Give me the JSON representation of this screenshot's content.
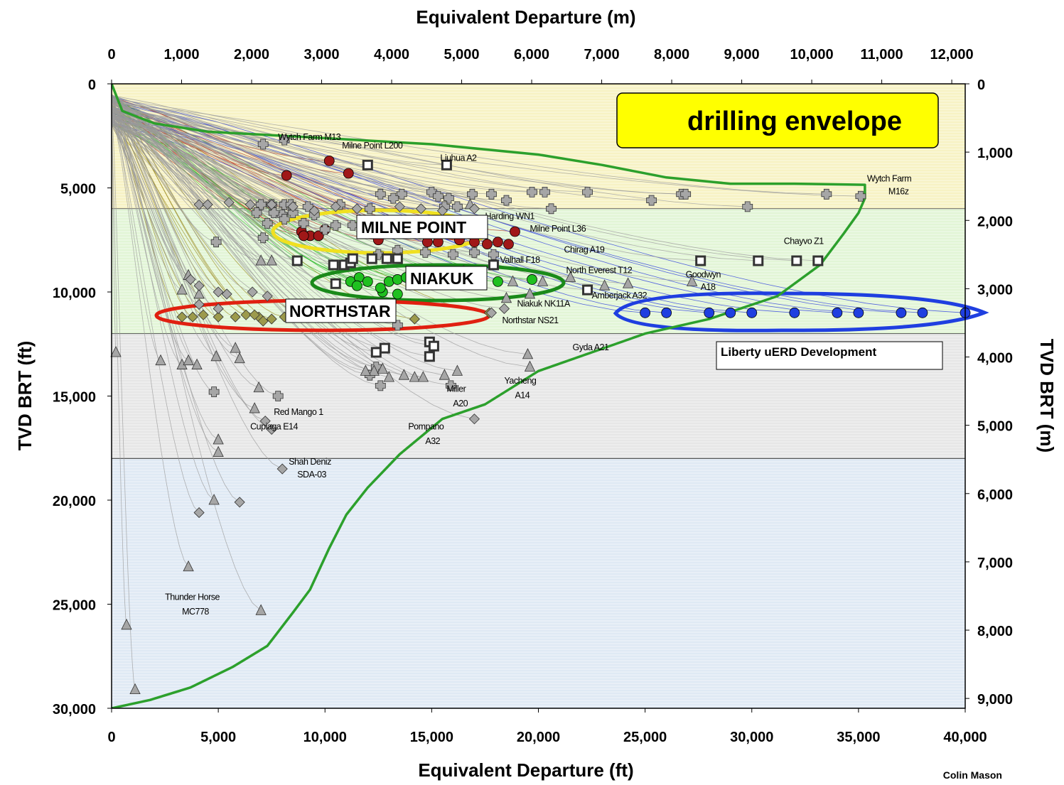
{
  "chart_data": {
    "type": "scatter",
    "title": "drilling envelope",
    "xlabel_bottom": "Equivalent Departure (ft)",
    "xlabel_top": "Equivalent Departure (m)",
    "ylabel_left": "TVD BRT (ft)",
    "ylabel_right": "TVD BRT (m)",
    "xlim_ft": [
      0,
      40000
    ],
    "ylim_ft": [
      0,
      30000
    ],
    "x_ticks_ft": [
      "0",
      "5,000",
      "10,000",
      "15,000",
      "20,000",
      "25,000",
      "30,000",
      "35,000",
      "40,000"
    ],
    "y_ticks_ft": [
      "0",
      "5,000",
      "10,000",
      "15,000",
      "20,000",
      "25,000",
      "30,000"
    ],
    "x_ticks_m": [
      "0",
      "1,000",
      "2,000",
      "3,000",
      "4,000",
      "5,000",
      "6,000",
      "7,000",
      "8,000",
      "9,000",
      "10,000",
      "11,000",
      "12,000"
    ],
    "y_ticks_m": [
      "0",
      "1,000",
      "2,000",
      "3,000",
      "4,000",
      "5,000",
      "6,000",
      "7,000",
      "8,000",
      "9,000"
    ],
    "depth_bands": [
      {
        "from_ft": 0,
        "to_ft": 6000,
        "color": "#f7f2c4"
      },
      {
        "from_ft": 6000,
        "to_ft": 12000,
        "color": "#e2f5d6"
      },
      {
        "from_ft": 12000,
        "to_ft": 18000,
        "color": "#e6e6e6"
      },
      {
        "from_ft": 18000,
        "to_ft": 30000,
        "color": "#dfe9f4"
      }
    ],
    "envelope": [
      [
        0,
        0
      ],
      [
        500,
        1300
      ],
      [
        2000,
        1900
      ],
      [
        4500,
        2300
      ],
      [
        9000,
        2550
      ],
      [
        15000,
        2900
      ],
      [
        20000,
        3400
      ],
      [
        23000,
        3900
      ],
      [
        26000,
        4500
      ],
      [
        29000,
        4800
      ],
      [
        32000,
        4800
      ],
      [
        35300,
        4850
      ],
      [
        35300,
        5500
      ],
      [
        35000,
        6200
      ],
      [
        34300,
        7200
      ],
      [
        33200,
        8700
      ],
      [
        31200,
        10200
      ],
      [
        28000,
        11300
      ],
      [
        25000,
        12000
      ],
      [
        22500,
        12900
      ],
      [
        20000,
        13800
      ],
      [
        17500,
        15400
      ],
      [
        15500,
        16100
      ],
      [
        13500,
        17800
      ],
      [
        12000,
        19400
      ],
      [
        11000,
        20700
      ],
      [
        10200,
        22300
      ],
      [
        9300,
        24300
      ],
      [
        8500,
        25400
      ],
      [
        7300,
        27000
      ],
      [
        5700,
        28000
      ],
      [
        3700,
        29000
      ],
      [
        1800,
        29600
      ],
      [
        0,
        30000
      ]
    ],
    "series": [
      {
        "name": "MILNE POINT",
        "marker": "circle",
        "color": "#a01818",
        "points": [
          [
            10200,
            3700
          ],
          [
            8200,
            4400
          ],
          [
            11100,
            4300
          ],
          [
            8900,
            7100
          ],
          [
            9300,
            7300
          ],
          [
            9700,
            7300
          ],
          [
            10000,
            7000
          ],
          [
            9000,
            7300
          ],
          [
            15300,
            7600
          ],
          [
            16300,
            7500
          ],
          [
            17000,
            7600
          ],
          [
            17600,
            7700
          ],
          [
            18100,
            7600
          ],
          [
            18600,
            7700
          ],
          [
            18900,
            7100
          ],
          [
            14800,
            7600
          ],
          [
            12500,
            7500
          ]
        ]
      },
      {
        "name": "NIAKUK",
        "marker": "circle",
        "color": "#20c020",
        "points": [
          [
            11200,
            9500
          ],
          [
            11600,
            9300
          ],
          [
            12000,
            9500
          ],
          [
            12700,
            10000
          ],
          [
            13000,
            9500
          ],
          [
            13400,
            9400
          ],
          [
            13800,
            9300
          ],
          [
            14200,
            9500
          ],
          [
            14700,
            9500
          ],
          [
            18100,
            9500
          ],
          [
            19700,
            9400
          ],
          [
            13400,
            10100
          ],
          [
            12600,
            9800
          ],
          [
            11500,
            9700
          ]
        ]
      },
      {
        "name": "NORTHSTAR",
        "marker": "diamond",
        "color": "#9c9a4c",
        "points": [
          [
            3300,
            11200
          ],
          [
            3800,
            11200
          ],
          [
            4300,
            11100
          ],
          [
            5000,
            11200
          ],
          [
            5800,
            11200
          ],
          [
            6300,
            11100
          ],
          [
            6900,
            11200
          ],
          [
            7500,
            11300
          ],
          [
            8100,
            11200
          ],
          [
            9100,
            11100
          ],
          [
            14200,
            11300
          ],
          [
            17700,
            11000
          ],
          [
            7100,
            11400
          ],
          [
            6700,
            11100
          ]
        ]
      },
      {
        "name": "Liberty uERD Development",
        "marker": "circle",
        "color": "#1f3fe0",
        "points": [
          [
            25000,
            11000
          ],
          [
            26000,
            11000
          ],
          [
            28000,
            11000
          ],
          [
            29000,
            11000
          ],
          [
            30000,
            11000
          ],
          [
            32000,
            11000
          ],
          [
            34000,
            11000
          ],
          [
            35000,
            11000
          ],
          [
            37000,
            11000
          ],
          [
            38000,
            11000
          ],
          [
            40000,
            11000
          ]
        ]
      },
      {
        "name": "",
        "marker": "cross",
        "color": "#a6a6a6",
        "points": [
          [
            7100,
            2900
          ],
          [
            8100,
            2700
          ],
          [
            12600,
            5300
          ],
          [
            13600,
            5300
          ],
          [
            15000,
            5200
          ],
          [
            15300,
            5400
          ],
          [
            15800,
            5500
          ],
          [
            17800,
            5300
          ],
          [
            18500,
            5600
          ],
          [
            19700,
            5200
          ],
          [
            20300,
            5200
          ],
          [
            22300,
            5200
          ],
          [
            25300,
            5600
          ],
          [
            26700,
            5300
          ],
          [
            26900,
            5300
          ],
          [
            29800,
            5900
          ],
          [
            33500,
            5300
          ],
          [
            35100,
            5400
          ],
          [
            7000,
            5800
          ],
          [
            7500,
            5800
          ],
          [
            8100,
            5800
          ],
          [
            8400,
            5800
          ],
          [
            9200,
            5900
          ],
          [
            10700,
            5800
          ],
          [
            12100,
            6000
          ],
          [
            13200,
            5500
          ],
          [
            15600,
            5900
          ],
          [
            16200,
            5900
          ],
          [
            20600,
            6000
          ],
          [
            8500,
            6200
          ],
          [
            9500,
            6300
          ],
          [
            8000,
            6300
          ],
          [
            7600,
            6200
          ],
          [
            6800,
            6200
          ],
          [
            7300,
            6700
          ],
          [
            4900,
            7600
          ],
          [
            7100,
            7400
          ],
          [
            13400,
            11600
          ],
          [
            12600,
            14500
          ],
          [
            15900,
            14500
          ],
          [
            12100,
            14000
          ],
          [
            12400,
            13600
          ],
          [
            4800,
            14800
          ],
          [
            7800,
            15000
          ],
          [
            8100,
            6500
          ],
          [
            10000,
            7000
          ],
          [
            11300,
            6800
          ],
          [
            9000,
            6700
          ],
          [
            10500,
            6800
          ],
          [
            12500,
            8200
          ],
          [
            13400,
            8000
          ],
          [
            14700,
            8100
          ],
          [
            16000,
            8200
          ],
          [
            17000,
            8100
          ],
          [
            17900,
            8200
          ],
          [
            16900,
            5300
          ]
        ]
      },
      {
        "name": "",
        "marker": "square",
        "color": "#333333",
        "points": [
          [
            12000,
            3900
          ],
          [
            15700,
            3900
          ],
          [
            8700,
            8500
          ],
          [
            10400,
            8700
          ],
          [
            10900,
            8700
          ],
          [
            11200,
            8600
          ],
          [
            11300,
            8400
          ],
          [
            12200,
            8400
          ],
          [
            12900,
            8400
          ],
          [
            13400,
            8400
          ],
          [
            17900,
            8700
          ],
          [
            22300,
            9900
          ],
          [
            27600,
            8500
          ],
          [
            30300,
            8500
          ],
          [
            32100,
            8500
          ],
          [
            33100,
            8500
          ],
          [
            12800,
            12700
          ],
          [
            14900,
            12400
          ],
          [
            15100,
            12600
          ],
          [
            14900,
            13100
          ],
          [
            12400,
            12900
          ],
          [
            10500,
            9600
          ]
        ]
      },
      {
        "name": "",
        "marker": "triangle",
        "color": "#a6a6a6",
        "points": [
          [
            200,
            12900
          ],
          [
            2300,
            13300
          ],
          [
            3300,
            13500
          ],
          [
            3600,
            13300
          ],
          [
            4000,
            13500
          ],
          [
            4900,
            13100
          ],
          [
            5800,
            12700
          ],
          [
            6000,
            13200
          ],
          [
            6900,
            14600
          ],
          [
            6700,
            15600
          ],
          [
            5000,
            17100
          ],
          [
            5000,
            17700
          ],
          [
            4800,
            20000
          ],
          [
            3600,
            23200
          ],
          [
            7000,
            25300
          ],
          [
            700,
            26000
          ],
          [
            1100,
            29100
          ],
          [
            12300,
            13800
          ],
          [
            12700,
            13700
          ],
          [
            11900,
            13800
          ],
          [
            13000,
            14100
          ],
          [
            13700,
            14000
          ],
          [
            14200,
            14100
          ],
          [
            14600,
            14100
          ],
          [
            15600,
            14000
          ],
          [
            16200,
            13800
          ],
          [
            19500,
            13000
          ],
          [
            19600,
            13600
          ],
          [
            16800,
            5800
          ],
          [
            3300,
            9900
          ],
          [
            4100,
            10100
          ],
          [
            3600,
            9200
          ],
          [
            7000,
            8500
          ],
          [
            7500,
            8500
          ],
          [
            18800,
            9500
          ],
          [
            18500,
            10300
          ],
          [
            19600,
            10100
          ],
          [
            21500,
            9300
          ],
          [
            23100,
            9700
          ],
          [
            24200,
            9600
          ],
          [
            27200,
            9500
          ],
          [
            20200,
            9500
          ],
          [
            16500,
            9000
          ]
        ]
      },
      {
        "name": "",
        "marker": "diamond",
        "color": "#a6a6a6",
        "points": [
          [
            4100,
            5800
          ],
          [
            4500,
            5800
          ],
          [
            5500,
            5700
          ],
          [
            6500,
            5800
          ],
          [
            7500,
            5800
          ],
          [
            8500,
            5900
          ],
          [
            9500,
            6100
          ],
          [
            10500,
            5900
          ],
          [
            11500,
            6000
          ],
          [
            13500,
            5900
          ],
          [
            14500,
            6000
          ],
          [
            15500,
            6100
          ],
          [
            17000,
            6000
          ],
          [
            3700,
            9400
          ],
          [
            4100,
            9700
          ],
          [
            5000,
            10000
          ],
          [
            5400,
            10100
          ],
          [
            5000,
            10800
          ],
          [
            4100,
            10600
          ],
          [
            7300,
            10200
          ],
          [
            6600,
            10000
          ],
          [
            7200,
            16200
          ],
          [
            7500,
            16600
          ],
          [
            8000,
            18500
          ],
          [
            4100,
            20600
          ],
          [
            6000,
            20100
          ],
          [
            17000,
            16100
          ],
          [
            17800,
            11000
          ],
          [
            18400,
            10800
          ]
        ]
      }
    ],
    "annotations": [
      {
        "text": "Wytch Farm M13",
        "x": 7800,
        "y": 2700
      },
      {
        "text": "Milne Point L200",
        "x": 10800,
        "y": 3100
      },
      {
        "text": "Liuhua A2",
        "x": 15400,
        "y": 3700
      },
      {
        "text": "Wytch Farm",
        "x": 35400,
        "y": 4700
      },
      {
        "text": "M16z",
        "x": 36400,
        "y": 5300
      },
      {
        "text": "Harding WN1",
        "x": 17500,
        "y": 6500
      },
      {
        "text": "Milne Point L36",
        "x": 19600,
        "y": 7100
      },
      {
        "text": "Chirag A19",
        "x": 21200,
        "y": 8100
      },
      {
        "text": "Chayvo Z1",
        "x": 31500,
        "y": 7700
      },
      {
        "text": "Valhall F18",
        "x": 18200,
        "y": 8600
      },
      {
        "text": "North Everest T12",
        "x": 21300,
        "y": 9100
      },
      {
        "text": "Goodwyn",
        "x": 26900,
        "y": 9300
      },
      {
        "text": "A18",
        "x": 27600,
        "y": 9900
      },
      {
        "text": "Amberjack A32",
        "x": 22500,
        "y": 10300
      },
      {
        "text": "Niakuk NK11A",
        "x": 19000,
        "y": 10700
      },
      {
        "text": "Northstar NS21",
        "x": 18300,
        "y": 11500
      },
      {
        "text": "Gyda A21",
        "x": 21600,
        "y": 12800
      },
      {
        "text": "Miller",
        "x": 15700,
        "y": 14800
      },
      {
        "text": "A20",
        "x": 16000,
        "y": 15500
      },
      {
        "text": "Yacheng",
        "x": 18400,
        "y": 14400
      },
      {
        "text": "A14",
        "x": 18900,
        "y": 15100
      },
      {
        "text": "Red Mango 1",
        "x": 7600,
        "y": 15900
      },
      {
        "text": "Cupiaga E14",
        "x": 6500,
        "y": 16600
      },
      {
        "text": "Pompano",
        "x": 13900,
        "y": 16600
      },
      {
        "text": "A32",
        "x": 14700,
        "y": 17300
      },
      {
        "text": "Shah Deniz",
        "x": 8300,
        "y": 18300
      },
      {
        "text": "SDA-03",
        "x": 8700,
        "y": 18900
      },
      {
        "text": "Thunder Horse",
        "x": 2500,
        "y": 24800
      },
      {
        "text": "MC778",
        "x": 3300,
        "y": 25500
      }
    ],
    "field_labels": [
      "MILNE POINT",
      "NIAKUK",
      "NORTHSTAR"
    ],
    "legend_box": "Liberty uERD Development",
    "credit": "Colin Mason"
  }
}
